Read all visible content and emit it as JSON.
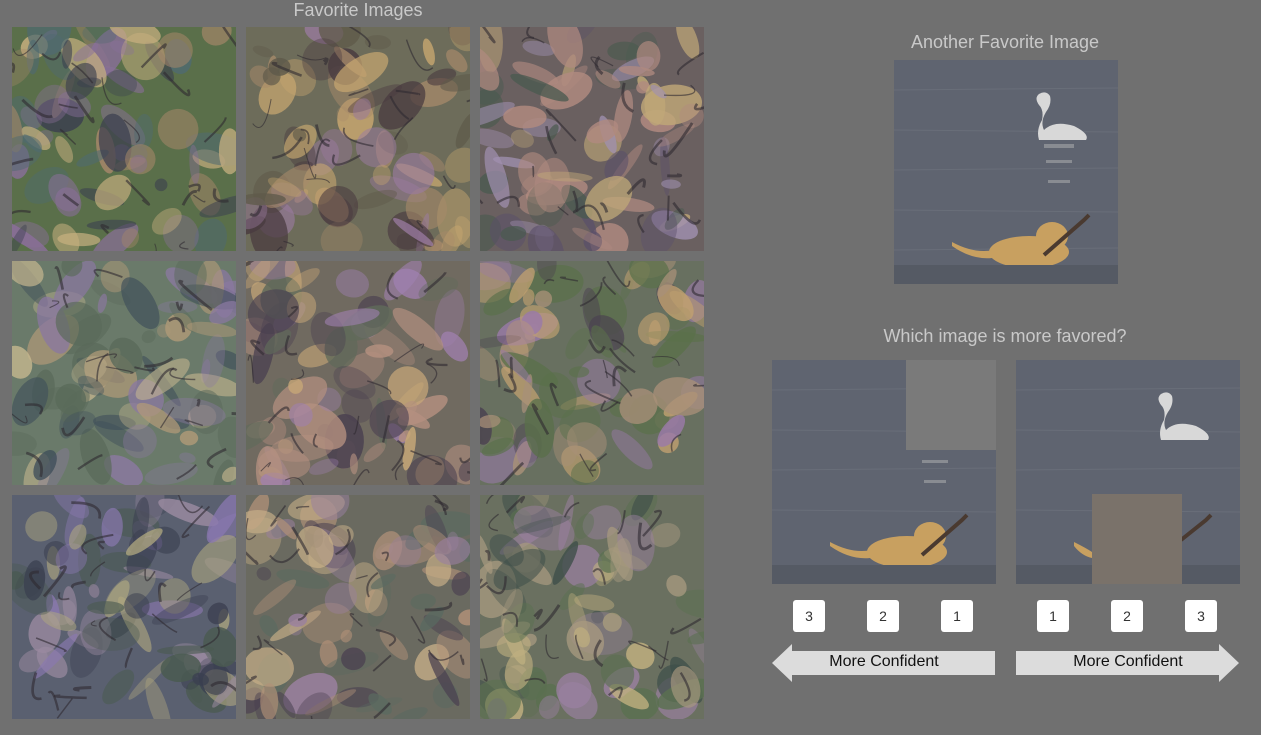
{
  "left_panel": {
    "title": "Favorite Images",
    "tiles": [
      {
        "name": "dream-tile-1",
        "palette": [
          "#5a6f4a",
          "#a7876a",
          "#3b3f4f",
          "#8a6f9a",
          "#c8b080",
          "#4f6a70"
        ]
      },
      {
        "name": "dream-tile-2",
        "palette": [
          "#6d6c5a",
          "#a78a6a",
          "#4a3b40",
          "#9a7aa0",
          "#c9a870",
          "#5f5a4a"
        ]
      },
      {
        "name": "dream-tile-3",
        "palette": [
          "#6a6060",
          "#b08a80",
          "#5a4f6a",
          "#a090b0",
          "#c0a878",
          "#4a5a4f"
        ]
      },
      {
        "name": "dream-tile-4",
        "palette": [
          "#6a7a6a",
          "#b09a78",
          "#3f4f5a",
          "#8a78a0",
          "#c8b890",
          "#5a6a5a"
        ]
      },
      {
        "name": "dream-tile-5",
        "palette": [
          "#706a60",
          "#b49080",
          "#4a4050",
          "#a080b0",
          "#c8a878",
          "#606a5a"
        ]
      },
      {
        "name": "dream-tile-6",
        "palette": [
          "#687060",
          "#a89078",
          "#4a4050",
          "#9a7aa8",
          "#c0a070",
          "#5a704a"
        ]
      },
      {
        "name": "dream-tile-7",
        "palette": [
          "#5a6070",
          "#9a8aa0",
          "#3a3f50",
          "#8a78b0",
          "#b0a880",
          "#4a5a50"
        ]
      },
      {
        "name": "dream-tile-8",
        "palette": [
          "#6a6a60",
          "#b09078",
          "#4a4050",
          "#9a80a0",
          "#c8b088",
          "#5a6a60"
        ]
      },
      {
        "name": "dream-tile-9",
        "palette": [
          "#6a7060",
          "#a89a80",
          "#3f4f4a",
          "#9a80a0",
          "#c0b080",
          "#5a7050"
        ]
      }
    ]
  },
  "right_panel": {
    "title": "Another Favorite Image",
    "question": "Which image is more favored?"
  },
  "choices": {
    "left": {
      "ranks": [
        "3",
        "2",
        "1"
      ],
      "arrow_label": "More Confident"
    },
    "right": {
      "ranks": [
        "1",
        "2",
        "3"
      ],
      "arrow_label": "More Confident"
    }
  },
  "colors": {
    "background": "#707070",
    "water": "#5f6470",
    "occlusion_left": "#7a7a7a",
    "occlusion_right": "#7a726a"
  }
}
